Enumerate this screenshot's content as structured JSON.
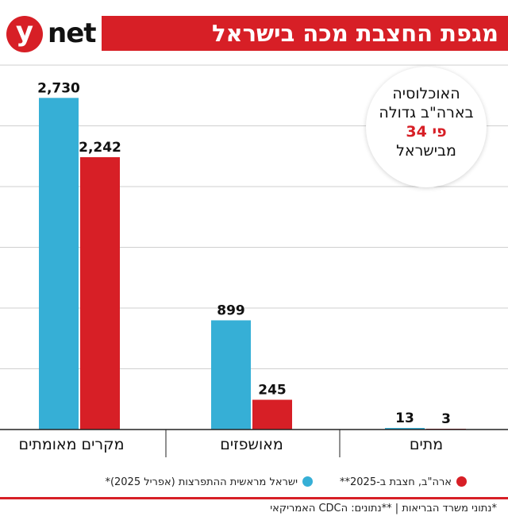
{
  "brand": {
    "logo_letter": "y",
    "logo_word": "net"
  },
  "header": {
    "title": "מגפת החצבת מכה בישראל"
  },
  "callout": {
    "line1": "האוכלוסיה",
    "line2": "בארה\"ב גדולה",
    "line3": "פי 34",
    "line4": "מבישראל"
  },
  "legend": {
    "israel_label": "ישראל מראשית ההתפרצות (אפריל 2025)*",
    "usa_label": "ארה\"ב, חצבת ב-2025**"
  },
  "footer": {
    "note": "*נתוני משרד הבריאות | **נתונים: הCDC האמריקאי"
  },
  "colors": {
    "brand_red": "#d71f26",
    "israel_blue": "#36afd6",
    "usa_red": "#d71f26",
    "grid": "#cfcfcf",
    "axis": "#222222"
  },
  "chart_data": {
    "type": "bar",
    "title": "מגפת החצבת מכה בישראל",
    "categories": [
      "מקרים מאומתים",
      "מאושפזים",
      "מתים"
    ],
    "series": [
      {
        "name": "ישראל מראשית ההתפרצות (אפריל 2025)*",
        "color": "#36afd6",
        "values": [
          2730,
          899,
          13
        ]
      },
      {
        "name": "ארה\"ב, חצבת ב-2025**",
        "color": "#d71f26",
        "values": [
          2242,
          245,
          3
        ]
      }
    ],
    "value_labels": [
      [
        "2,730",
        "899",
        "13"
      ],
      [
        "2,242",
        "245",
        "3"
      ]
    ],
    "ylim": [
      0,
      3000
    ],
    "yticks": [
      0,
      500,
      1000,
      1500,
      2000,
      2500,
      3000
    ],
    "grid": true,
    "legend_position": "bottom"
  }
}
